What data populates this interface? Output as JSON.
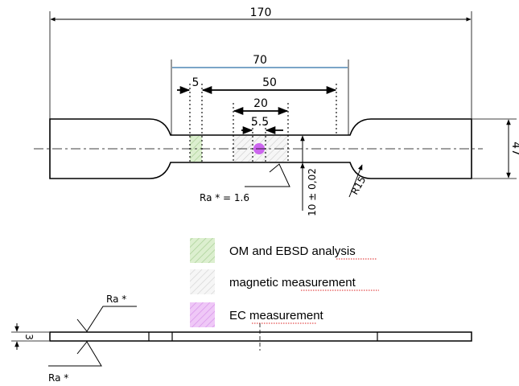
{
  "dimensions": {
    "overall_length": "170",
    "gauge_span": "70",
    "small_gap": "5",
    "parallel_length": "50",
    "mid_length": "20",
    "center_length": "5.5",
    "grip_width": "47",
    "width_tolerance": "10 ± 0,02",
    "radius": "R15",
    "thickness": "3"
  },
  "roughness": {
    "label_main": "Ra * = 1.6",
    "label_top": "Ra *",
    "label_bottom": "Ra *"
  },
  "legend": {
    "items": [
      {
        "label": "OM and EBSD analysis",
        "color": "#cfe6c0"
      },
      {
        "label": "magnetic measurement",
        "color": "#e6e6e6"
      },
      {
        "label": "EC measurement",
        "color": "#e8b5f2"
      }
    ]
  },
  "colors": {
    "line": "#000000",
    "span_70_line": "#2a6fa8",
    "ec_dot": "#cc66ee"
  }
}
